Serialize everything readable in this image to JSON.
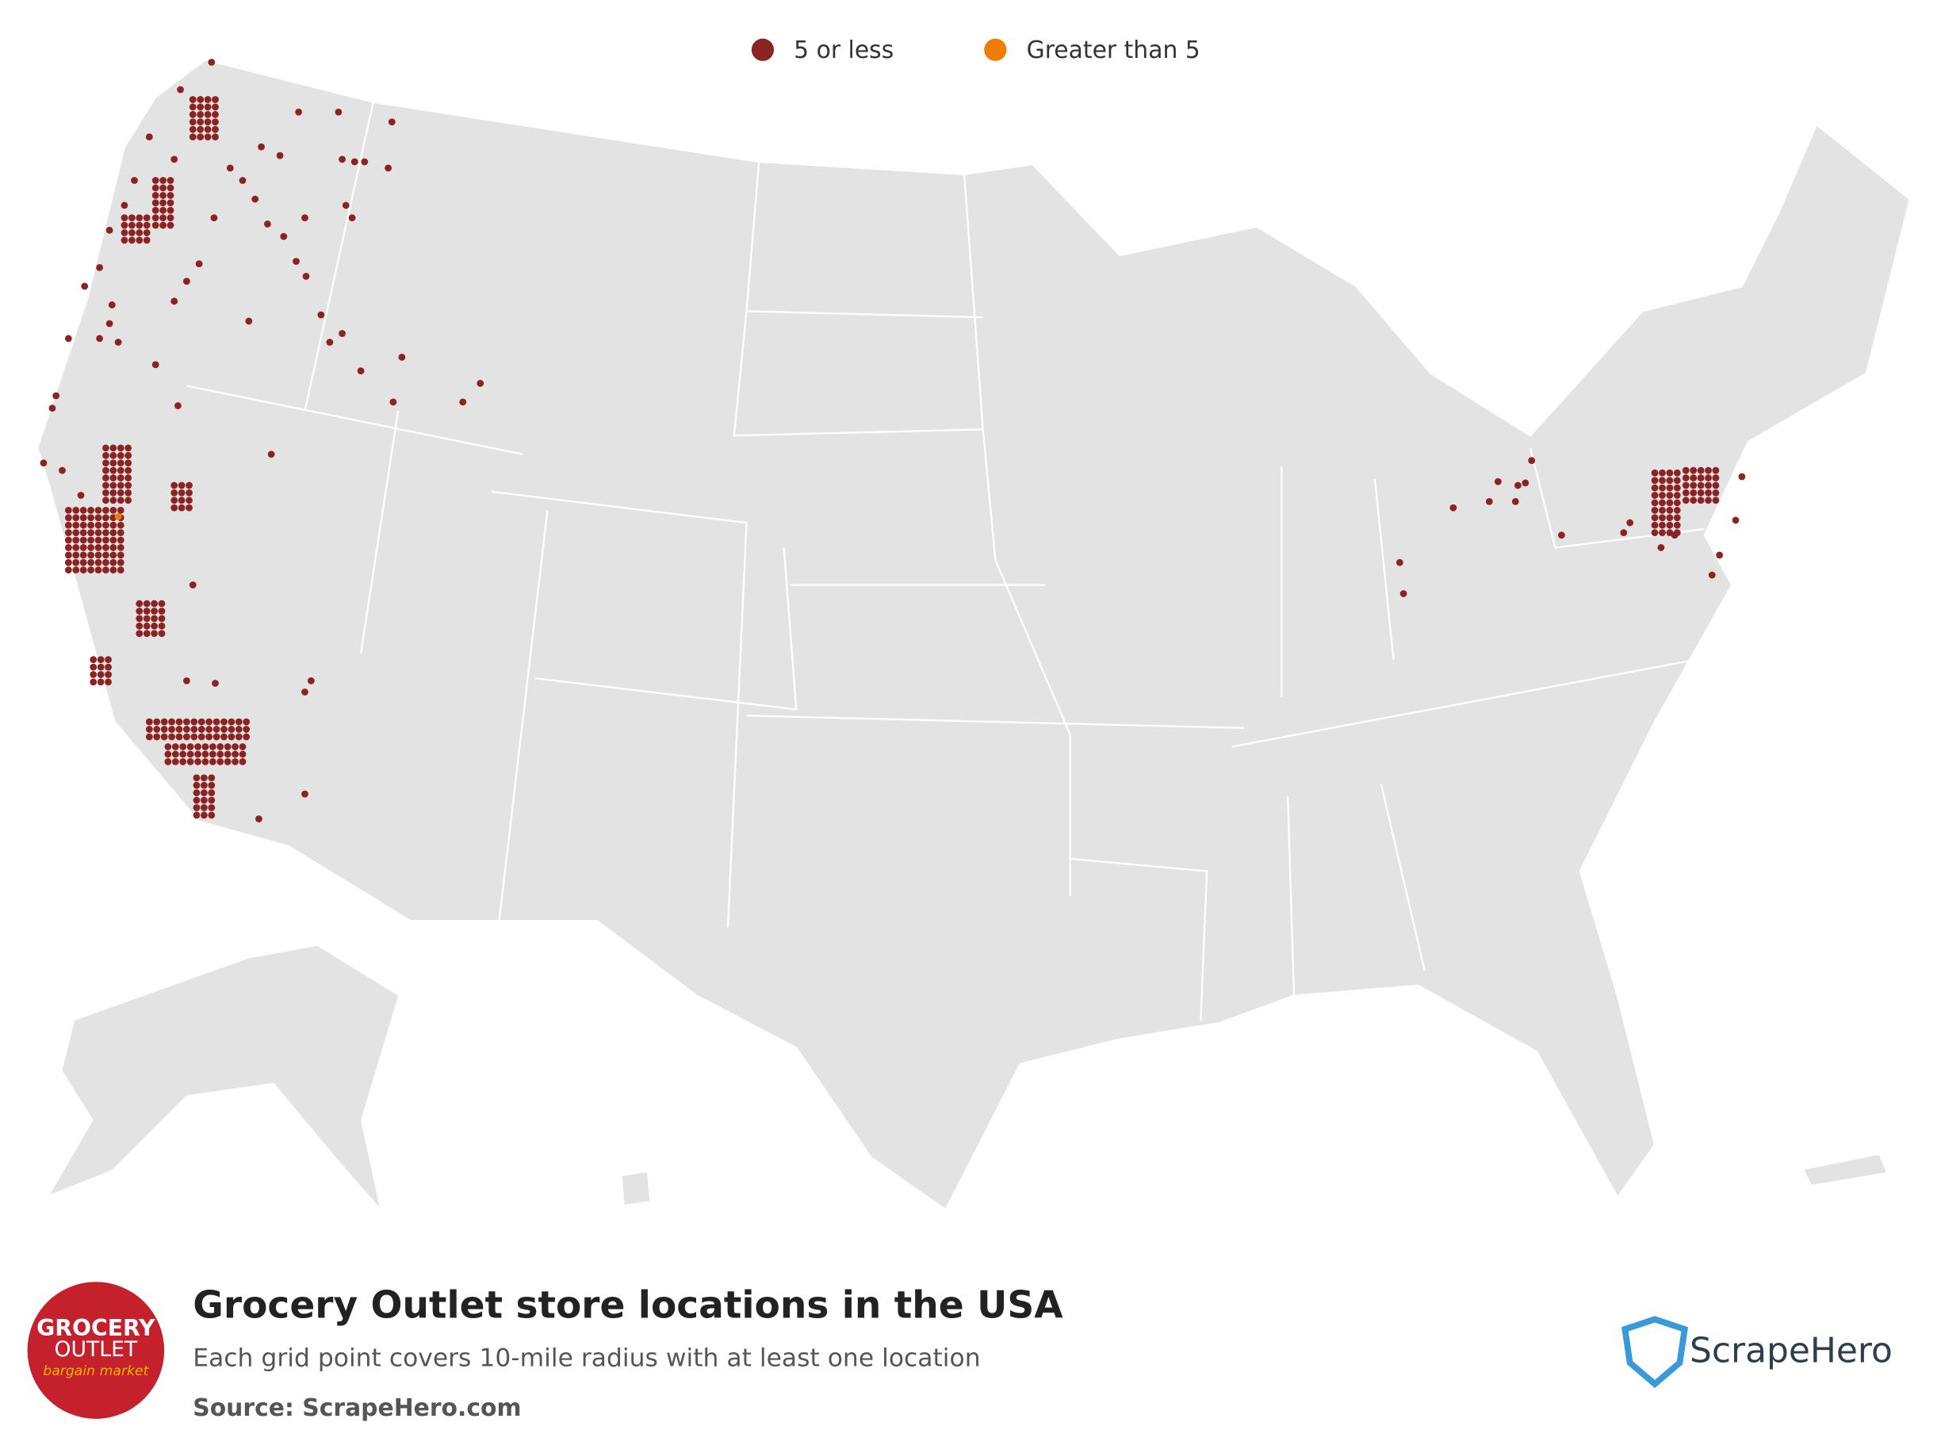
{
  "legend": {
    "items": [
      {
        "label": "5 or less",
        "color": "#8b2323"
      },
      {
        "label": "Greater than 5",
        "color": "#f07d00"
      }
    ]
  },
  "footer": {
    "title": "Grocery Outlet store locations in the USA",
    "subtitle": "Each grid point covers 10-mile radius with at least one location",
    "source": "Source: ScrapeHero.com"
  },
  "logo": {
    "line1": "GROCERY",
    "line2": "OUTLET",
    "line3": "bargain market"
  },
  "brand": {
    "name": "ScrapeHero"
  }
}
